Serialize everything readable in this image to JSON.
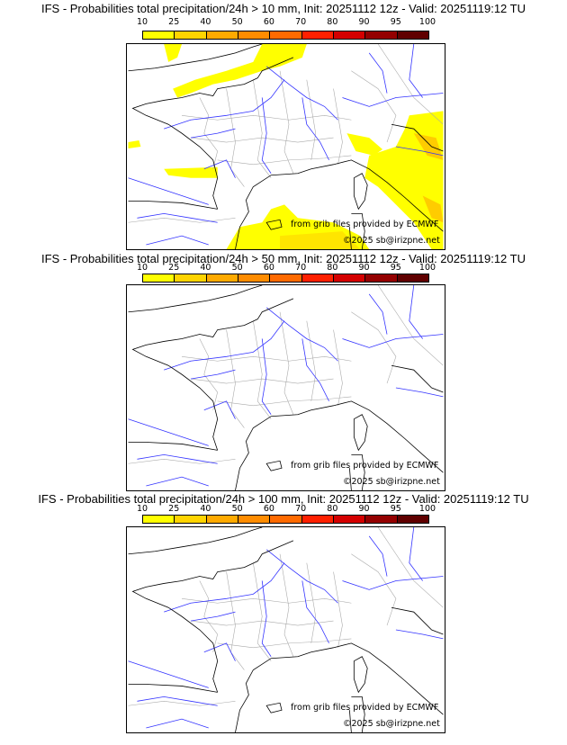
{
  "panels": [
    {
      "title": "IFS - Probabilities total precipitation/24h > 10 mm, Init: 20251112 12z - Valid: 20251119:12 TU",
      "threshold_mm": 10,
      "has_precip": true
    },
    {
      "title": "IFS - Probabilities total precipitation/24h > 50 mm, Init: 20251112 12z - Valid: 20251119:12 TU",
      "threshold_mm": 50,
      "has_precip": false
    },
    {
      "title": "IFS - Probabilities total precipitation/24h > 100 mm, Init: 20251112 12z - Valid: 20251119:12 TU",
      "threshold_mm": 100,
      "has_precip": false
    }
  ],
  "colorbar": {
    "ticks": [
      "10",
      "25",
      "40",
      "50",
      "60",
      "70",
      "80",
      "90",
      "95",
      "100"
    ],
    "colors": [
      "#ffff00",
      "#ffd400",
      "#ffaa00",
      "#ff8c00",
      "#ff6a00",
      "#ff2000",
      "#d40000",
      "#940000",
      "#600000"
    ]
  },
  "credits": {
    "source": "from grib files provided by ECMWF",
    "copyright": "©2025 sb@irizpne.net"
  },
  "map_colors": {
    "coast": "#000000",
    "rivers": "#3333ff",
    "borders": "#aaaaaa"
  }
}
